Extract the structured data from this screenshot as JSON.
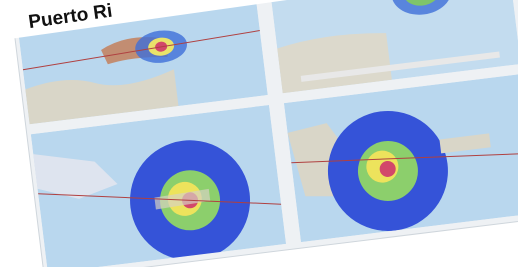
{
  "caption": "Puerto Ri"
}
